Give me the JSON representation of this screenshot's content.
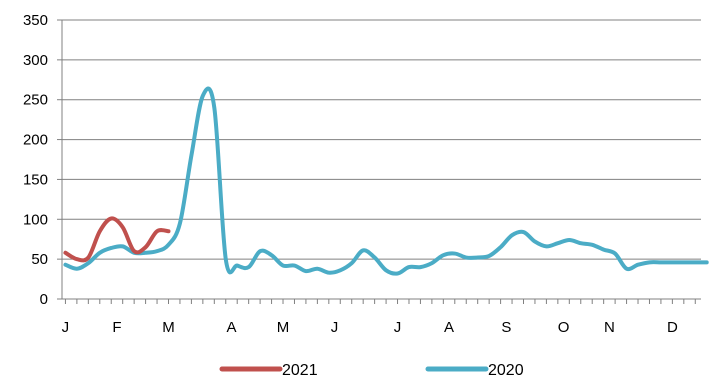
{
  "chart_data": {
    "type": "line",
    "title": "",
    "xlabel": "",
    "ylabel": "",
    "ylim": [
      0,
      350
    ],
    "yticks": [
      0,
      50,
      100,
      150,
      200,
      250,
      300,
      350
    ],
    "month_labels": [
      {
        "label": "J",
        "week": 0
      },
      {
        "label": "F",
        "week": 4.5
      },
      {
        "label": "M",
        "week": 9
      },
      {
        "label": "A",
        "week": 14.5
      },
      {
        "label": "M",
        "week": 19
      },
      {
        "label": "J",
        "week": 23.5
      },
      {
        "label": "J",
        "week": 29
      },
      {
        "label": "A",
        "week": 33.5
      },
      {
        "label": "S",
        "week": 38.5
      },
      {
        "label": "O",
        "week": 43.5
      },
      {
        "label": "N",
        "week": 47.5
      },
      {
        "label": "D",
        "week": 53
      }
    ],
    "grid": true,
    "legend_position": "bottom",
    "series": [
      {
        "name": "2021",
        "color": "#c0504d",
        "x": [
          0,
          1,
          2,
          3,
          4,
          5,
          6,
          7,
          8,
          9
        ],
        "y": [
          58,
          50,
          52,
          85,
          101,
          90,
          60,
          65,
          85,
          85
        ]
      },
      {
        "name": "2020",
        "color": "#4bacc6",
        "x": [
          0,
          1,
          2,
          3,
          4,
          5,
          6,
          7,
          8,
          9,
          10,
          11,
          12,
          13,
          14,
          15,
          16,
          17,
          18,
          19,
          20,
          21,
          22,
          23,
          24,
          25,
          26,
          27,
          28,
          29,
          30,
          31,
          32,
          33,
          34,
          35,
          36,
          37,
          38,
          39,
          40,
          41,
          42,
          43,
          44,
          45,
          46,
          47,
          48,
          49,
          50,
          51,
          52,
          53,
          54,
          55,
          56
        ],
        "y": [
          43,
          38,
          45,
          58,
          64,
          66,
          58,
          58,
          60,
          68,
          95,
          180,
          255,
          240,
          50,
          42,
          40,
          60,
          55,
          42,
          42,
          35,
          38,
          33,
          36,
          45,
          61,
          52,
          36,
          32,
          40,
          40,
          45,
          55,
          57,
          52,
          52,
          54,
          65,
          80,
          84,
          72,
          66,
          70,
          74,
          70,
          68,
          62,
          57,
          38,
          43,
          46,
          46,
          46,
          46,
          46,
          46
        ]
      }
    ]
  }
}
